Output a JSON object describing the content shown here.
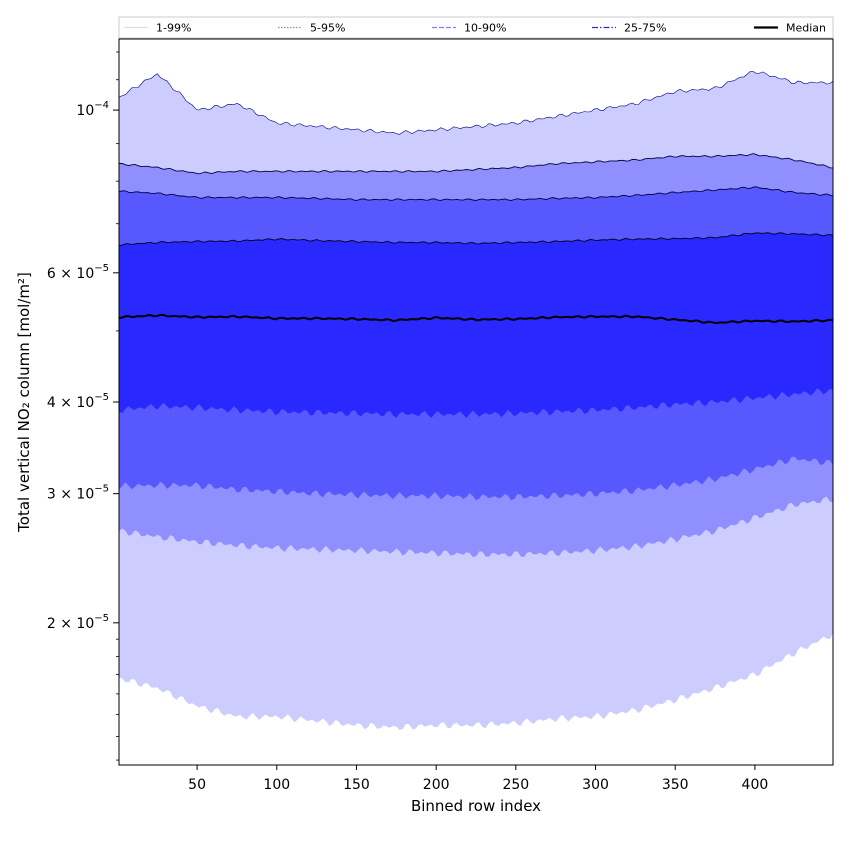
{
  "chart_data": {
    "type": "area",
    "title": "",
    "xlabel": "Binned row index",
    "ylabel": "Total vertical NO₂ column [mol/m²]",
    "y_scale": "log",
    "xlim": [
      1,
      449
    ],
    "ylim": [
      1.28e-05,
      0.000125
    ],
    "x_ticks": [
      {
        "value": 50,
        "label": "50"
      },
      {
        "value": 100,
        "label": "100"
      },
      {
        "value": 150,
        "label": "150"
      },
      {
        "value": 200,
        "label": "200"
      },
      {
        "value": 250,
        "label": "250"
      },
      {
        "value": 300,
        "label": "300"
      },
      {
        "value": 350,
        "label": "350"
      },
      {
        "value": 400,
        "label": "400"
      }
    ],
    "y_ticks": [
      {
        "value": 2e-05,
        "mantissa": "2 × 10",
        "exponent": "−5"
      },
      {
        "value": 3e-05,
        "mantissa": "3 × 10",
        "exponent": "−5"
      },
      {
        "value": 4e-05,
        "mantissa": "4 × 10",
        "exponent": "−5"
      },
      {
        "value": 6e-05,
        "mantissa": "6 × 10",
        "exponent": "−5"
      },
      {
        "value": 0.0001,
        "mantissa": "10",
        "exponent": "−4"
      }
    ],
    "grid": false,
    "legend_placement": "top",
    "legend": [
      {
        "label": "1-99%",
        "color": "#dcdcf5",
        "style": "solid"
      },
      {
        "label": "5-95%",
        "color": "#8a8ac8",
        "style": "dotted"
      },
      {
        "label": "10-90%",
        "color": "#8080f0",
        "style": "dashed"
      },
      {
        "label": "25-75%",
        "color": "#3030c0",
        "style": "dashdot"
      },
      {
        "label": "Median",
        "color": "#000000",
        "style": "solid"
      }
    ],
    "x": [
      1,
      25,
      50,
      75,
      100,
      125,
      150,
      175,
      200,
      225,
      250,
      275,
      300,
      325,
      350,
      375,
      400,
      425,
      449
    ],
    "bands": [
      {
        "name": "1-99%",
        "fill": "#ccccff",
        "upper_line": "#000080",
        "upper": [
          0.000104,
          0.000112,
          0.0001,
          0.000102,
          9.6e-05,
          9.5e-05,
          9.4e-05,
          9.3e-05,
          9.4e-05,
          9.5e-05,
          9.6e-05,
          9.8e-05,
          0.0001,
          0.000102,
          0.000106,
          0.000107,
          0.000113,
          0.000109,
          0.000109
        ],
        "lower": [
          1.68e-05,
          1.63e-05,
          1.54e-05,
          1.49e-05,
          1.49e-05,
          1.47e-05,
          1.45e-05,
          1.44e-05,
          1.45e-05,
          1.45e-05,
          1.46e-05,
          1.48e-05,
          1.49e-05,
          1.52e-05,
          1.57e-05,
          1.63e-05,
          1.7e-05,
          1.82e-05,
          1.93e-05
        ]
      },
      {
        "name": "5-95%",
        "fill": "#8f8fff",
        "upper_line": "#000040",
        "upper": [
          8.45e-05,
          8.35e-05,
          8.2e-05,
          8.25e-05,
          8.25e-05,
          8.25e-05,
          8.25e-05,
          8.25e-05,
          8.25e-05,
          8.3e-05,
          8.35e-05,
          8.45e-05,
          8.5e-05,
          8.55e-05,
          8.65e-05,
          8.65e-05,
          8.7e-05,
          8.55e-05,
          8.35e-05
        ],
        "lower": [
          2.67e-05,
          2.62e-05,
          2.58e-05,
          2.55e-05,
          2.53e-05,
          2.52e-05,
          2.51e-05,
          2.5e-05,
          2.49e-05,
          2.48e-05,
          2.48e-05,
          2.49e-05,
          2.51e-05,
          2.54e-05,
          2.6e-05,
          2.67e-05,
          2.78e-05,
          2.9e-05,
          2.95e-05
        ]
      },
      {
        "name": "10-90%",
        "fill": "#5858ff",
        "upper_line": "#000040",
        "upper": [
          7.75e-05,
          7.7e-05,
          7.6e-05,
          7.6e-05,
          7.6e-05,
          7.58e-05,
          7.55e-05,
          7.55e-05,
          7.55e-05,
          7.55e-05,
          7.55e-05,
          7.58e-05,
          7.6e-05,
          7.65e-05,
          7.72e-05,
          7.78e-05,
          7.85e-05,
          7.72e-05,
          7.65e-05
        ],
        "lower": [
          3.07e-05,
          3.08e-05,
          3.08e-05,
          3.04e-05,
          3.02e-05,
          3e-05,
          2.99e-05,
          2.98e-05,
          2.98e-05,
          2.97e-05,
          2.97e-05,
          2.98e-05,
          3e-05,
          3.03e-05,
          3.08e-05,
          3.14e-05,
          3.24e-05,
          3.35e-05,
          3.3e-05
        ]
      },
      {
        "name": "25-75%",
        "fill": "#2828ff",
        "upper_line": "#000020",
        "upper": [
          6.55e-05,
          6.6e-05,
          6.62e-05,
          6.63e-05,
          6.67e-05,
          6.64e-05,
          6.62e-05,
          6.6e-05,
          6.6e-05,
          6.58e-05,
          6.6e-05,
          6.62e-05,
          6.65e-05,
          6.67e-05,
          6.68e-05,
          6.7e-05,
          6.8e-05,
          6.78e-05,
          6.75e-05
        ],
        "lower": [
          3.9e-05,
          3.95e-05,
          3.93e-05,
          3.9e-05,
          3.88e-05,
          3.87e-05,
          3.86e-05,
          3.85e-05,
          3.85e-05,
          3.85e-05,
          3.86e-05,
          3.88e-05,
          3.9e-05,
          3.93e-05,
          3.97e-05,
          4e-05,
          4.05e-05,
          4.1e-05,
          4.15e-05
        ]
      }
    ],
    "median": {
      "name": "Median",
      "color": "#000000",
      "values": [
        5.22e-05,
        5.25e-05,
        5.22e-05,
        5.23e-05,
        5.2e-05,
        5.2e-05,
        5.19e-05,
        5.17e-05,
        5.21e-05,
        5.18e-05,
        5.19e-05,
        5.22e-05,
        5.23e-05,
        5.23e-05,
        5.18e-05,
        5.13e-05,
        5.16e-05,
        5.15e-05,
        5.17e-05
      ]
    }
  }
}
